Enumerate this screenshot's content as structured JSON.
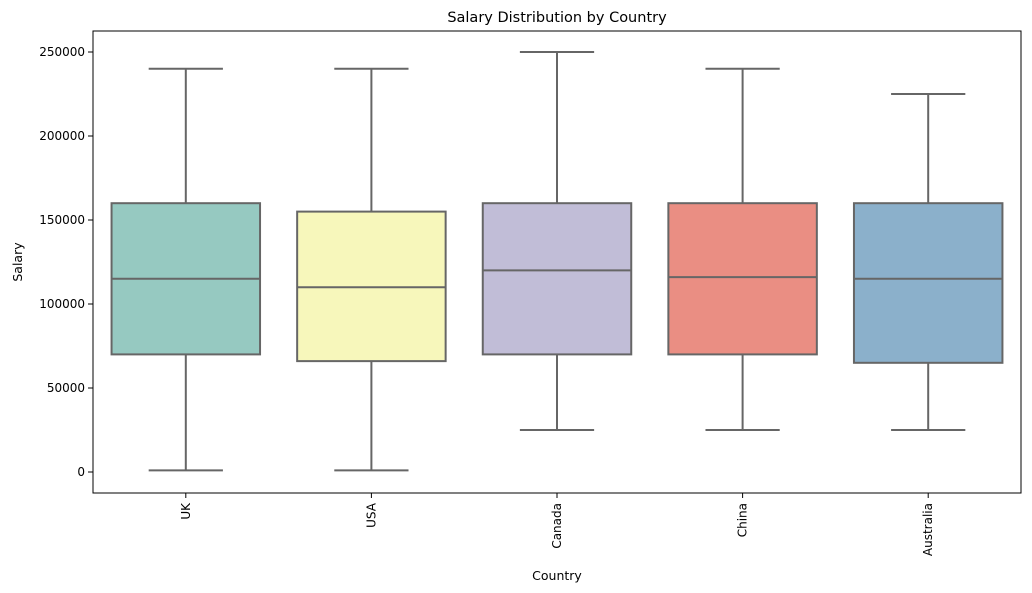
{
  "chart_data": {
    "type": "box",
    "title": "Salary Distribution by Country",
    "xlabel": "Country",
    "ylabel": "Salary",
    "ylim": [
      -12500,
      262500
    ],
    "yticks": [
      0,
      50000,
      100000,
      150000,
      200000,
      250000
    ],
    "ytick_labels": [
      "0",
      "50000",
      "100000",
      "150000",
      "200000",
      "250000"
    ],
    "categories": [
      "UK",
      "USA",
      "Canada",
      "China",
      "Australia"
    ],
    "boxes": [
      {
        "name": "UK",
        "whisker_low": 1000,
        "q1": 70000,
        "median": 115000,
        "q3": 160000,
        "whisker_high": 240000,
        "color": "#96c9c1"
      },
      {
        "name": "USA",
        "whisker_low": 1000,
        "q1": 66000,
        "median": 110000,
        "q3": 155000,
        "whisker_high": 240000,
        "color": "#f7f7bb"
      },
      {
        "name": "Canada",
        "whisker_low": 25000,
        "q1": 70000,
        "median": 120000,
        "q3": 160000,
        "whisker_high": 250000,
        "color": "#c1bdd7"
      },
      {
        "name": "China",
        "whisker_low": 25000,
        "q1": 70000,
        "median": 116000,
        "q3": 160000,
        "whisker_high": 240000,
        "color": "#ea8e83"
      },
      {
        "name": "Australia",
        "whisker_low": 25000,
        "q1": 65000,
        "median": 115000,
        "q3": 160000,
        "whisker_high": 225000,
        "color": "#8bb0cb"
      }
    ],
    "grid": false,
    "legend": "none"
  }
}
